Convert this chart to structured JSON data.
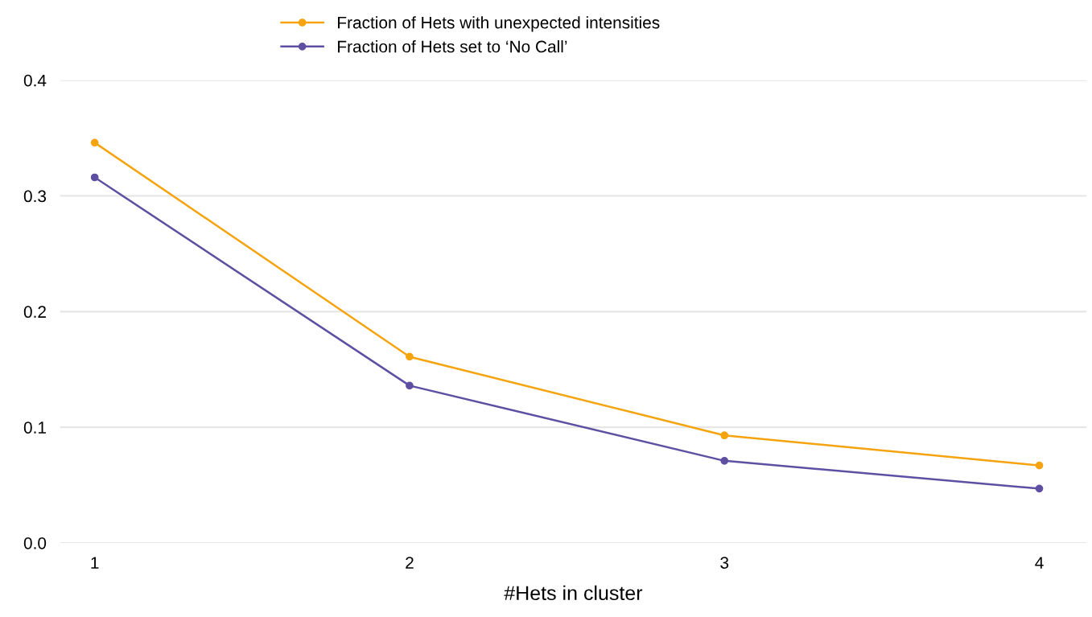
{
  "chart_data": {
    "type": "line",
    "xlabel": "#Hets in cluster",
    "categories": [
      "1",
      "2",
      "3",
      "4"
    ],
    "series": [
      {
        "name": "Fraction of Hets with unexpected intensities",
        "color": "#f5a30f",
        "values": [
          0.346,
          0.161,
          0.093,
          0.067
        ]
      },
      {
        "name": "Fraction of Hets set to ‘No Call’",
        "color": "#5e4fa2",
        "values": [
          0.316,
          0.136,
          0.071,
          0.047
        ]
      }
    ],
    "ylim": [
      0,
      0.4
    ],
    "yticks": [
      {
        "value": 0,
        "label": "0.0"
      },
      0.1,
      0.2,
      0.3,
      0.4
    ],
    "grid": "y",
    "legend": "top",
    "marker": "circle",
    "line_style": "solid"
  }
}
